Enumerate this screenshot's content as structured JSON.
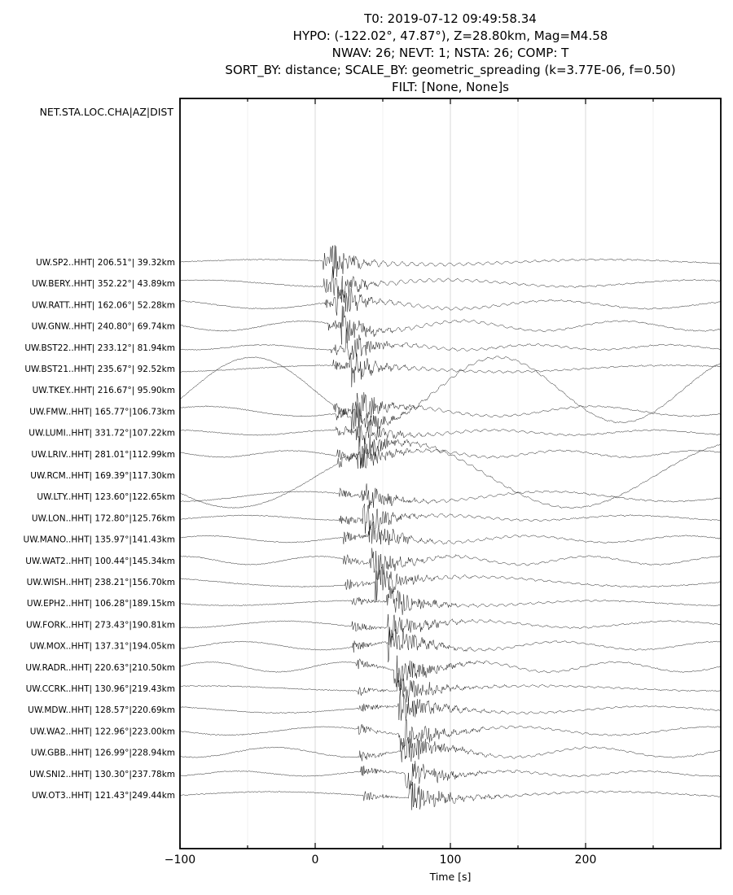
{
  "chart_data": {
    "type": "line",
    "title_lines": [
      "T0: 2019-07-12 09:49:58.34",
      "HYPO: (-122.02°, 47.87°), Z=28.80km, Mag=M4.58",
      "NWAV: 26; NEVT: 1; NSTA: 26; COMP: T",
      "SORT_BY: distance; SCALE_BY: geometric_spreading (k=3.77E-06, f=0.50)",
      "FILT: [None, None]s"
    ],
    "station_header": "NET.STA.LOC.CHA|AZ|DIST",
    "xlabel": "Time [s]",
    "xlim": [
      -100,
      300
    ],
    "xticks": [
      -100,
      0,
      100,
      200
    ],
    "xtick_labels": [
      "−100",
      "0",
      "100",
      "200"
    ],
    "grid": true,
    "stations": [
      {
        "label": "UW.SP2..HHT| 206.51°| 39.32km",
        "distance_km": 39.32
      },
      {
        "label": "UW.BERY..HHT| 352.22°| 43.89km",
        "distance_km": 43.89
      },
      {
        "label": "UW.RATT..HHT| 162.06°| 52.28km",
        "distance_km": 52.28
      },
      {
        "label": "UW.GNW..HHT| 240.80°| 69.74km",
        "distance_km": 69.74
      },
      {
        "label": "UW.BST22..HHT| 233.12°| 81.94km",
        "distance_km": 81.94
      },
      {
        "label": "UW.BST21..HHT| 235.67°| 92.52km",
        "distance_km": 92.52
      },
      {
        "label": "UW.TKEY..HHT| 216.67°| 95.90km",
        "distance_km": 95.9
      },
      {
        "label": "UW.FMW..HHT| 165.77°|106.73km",
        "distance_km": 106.73
      },
      {
        "label": "UW.LUMI..HHT| 331.72°|107.22km",
        "distance_km": 107.22
      },
      {
        "label": "UW.LRIV..HHT| 281.01°|112.99km",
        "distance_km": 112.99
      },
      {
        "label": "UW.RCM..HHT| 169.39°|117.30km",
        "distance_km": 117.3
      },
      {
        "label": "UW.LTY..HHT| 123.60°|122.65km",
        "distance_km": 122.65
      },
      {
        "label": "UW.LON..HHT| 172.80°|125.76km",
        "distance_km": 125.76
      },
      {
        "label": "UW.MANO..HHT| 135.97°|141.43km",
        "distance_km": 141.43
      },
      {
        "label": "UW.WAT2..HHT| 100.44°|145.34km",
        "distance_km": 145.34
      },
      {
        "label": "UW.WISH..HHT| 238.21°|156.70km",
        "distance_km": 156.7
      },
      {
        "label": "UW.EPH2..HHT| 106.28°|189.15km",
        "distance_km": 189.15
      },
      {
        "label": "UW.FORK..HHT| 273.43°|190.81km",
        "distance_km": 190.81
      },
      {
        "label": "UW.MOX..HHT| 137.31°|194.05km",
        "distance_km": 194.05
      },
      {
        "label": "UW.RADR..HHT| 220.63°|210.50km",
        "distance_km": 210.5
      },
      {
        "label": "UW.CCRK..HHT| 130.96°|219.43km",
        "distance_km": 219.43
      },
      {
        "label": "UW.MDW..HHT| 128.57°|220.69km",
        "distance_km": 220.69
      },
      {
        "label": "UW.WA2..HHT| 122.96°|223.00km",
        "distance_km": 223.0
      },
      {
        "label": "UW.GBB..HHT| 126.99°|228.94km",
        "distance_km": 228.94
      },
      {
        "label": "UW.SNI2..HHT| 130.30°|237.78km",
        "distance_km": 237.78
      },
      {
        "label": "UW.OT3..HHT| 121.43°|249.44km",
        "distance_km": 249.44
      }
    ],
    "colors": {
      "trace": "#000000",
      "grid": "#d9d9d9",
      "minor_grid": "#efefef",
      "frame": "#000000"
    }
  }
}
